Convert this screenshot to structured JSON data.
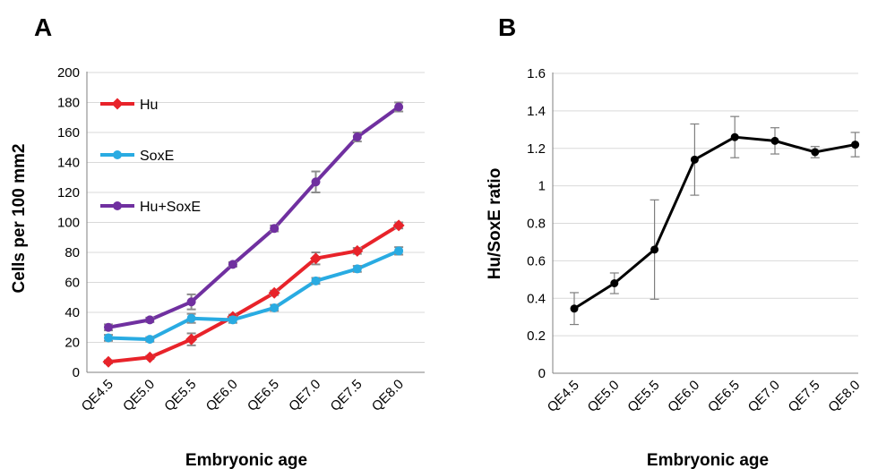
{
  "chart_data": [
    {
      "panel": "A",
      "type": "line",
      "categories": [
        "QE4.5",
        "QE5.0",
        "QE5.5",
        "QE6.0",
        "QE6.5",
        "QE7.0",
        "QE7.5",
        "QE8.0"
      ],
      "xlabel": "Embryonic age",
      "ylabel": "Cells per 100 mm2",
      "ylim": [
        0,
        200
      ],
      "yticks": [
        0,
        20,
        40,
        60,
        80,
        100,
        120,
        140,
        160,
        180,
        200
      ],
      "grid": true,
      "legend": "top-left",
      "series": [
        {
          "name": "Hu",
          "color": "#e8232a",
          "marker": "diamond",
          "values": [
            7,
            10,
            22,
            37,
            53,
            76,
            81,
            98
          ],
          "errors": [
            1,
            1,
            4,
            1.5,
            1.5,
            4,
            2,
            2
          ]
        },
        {
          "name": "SoxE",
          "color": "#29abe2",
          "marker": "circle",
          "values": [
            23,
            22,
            36,
            35,
            43,
            61,
            69,
            81
          ],
          "errors": [
            2,
            1.5,
            3,
            2,
            2,
            2,
            2,
            2.5
          ]
        },
        {
          "name": "Hu+SoxE",
          "color": "#7030a0",
          "marker": "circle",
          "values": [
            30,
            35,
            47,
            72,
            96,
            127,
            157,
            177
          ],
          "errors": [
            2,
            1.5,
            5,
            1.5,
            2,
            7,
            3,
            3
          ]
        }
      ]
    },
    {
      "panel": "B",
      "type": "line",
      "categories": [
        "QE4.5",
        "QE5.0",
        "QE5.5",
        "QE6.0",
        "QE6.5",
        "QE7.0",
        "QE7.5",
        "QE8.0"
      ],
      "xlabel": "Embryonic age",
      "ylabel": "Hu/SoxE ratio",
      "ylim": [
        0,
        1.6
      ],
      "yticks": [
        "0",
        "0.2",
        "0.4",
        "0.6",
        "0.8",
        "1",
        "1.2",
        "1.4",
        "1.6"
      ],
      "grid": true,
      "series": [
        {
          "color": "#000000",
          "marker": "circle",
          "values": [
            0.345,
            0.48,
            0.66,
            1.14,
            1.26,
            1.24,
            1.18,
            1.22
          ],
          "errors": [
            0.085,
            0.055,
            0.265,
            0.19,
            0.11,
            0.07,
            0.03,
            0.065
          ]
        }
      ]
    }
  ]
}
